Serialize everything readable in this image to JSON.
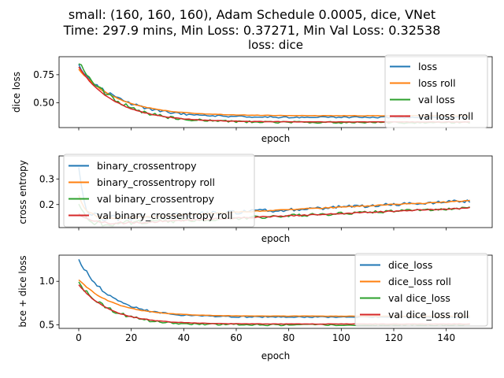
{
  "figure": {
    "title_line1": "small: (160, 160, 160), Adam Schedule 0.0005, dice, VNet",
    "title_line2": "Time: 297.9 mins, Min Loss: 0.37271, Min Val Loss: 0.32538"
  },
  "colors": {
    "c0": "#1f77b4",
    "c1": "#ff7f0e",
    "c2": "#2ca02c",
    "c3": "#d62728"
  },
  "chart_data": [
    {
      "type": "line",
      "title": "loss: dice",
      "xlabel": "epoch",
      "ylabel": "dice loss",
      "xlim": [
        -7.5,
        157.5
      ],
      "ylim": [
        0.28,
        0.91
      ],
      "xticks": [],
      "yticks": [
        {
          "value": 0.5,
          "label": "0.50"
        },
        {
          "value": 0.75,
          "label": "0.75"
        }
      ],
      "legend": "top-right",
      "n_epochs": 150,
      "series": [
        {
          "name": "loss",
          "color": "#1f77b4",
          "start": 0.83,
          "end": 0.37,
          "tau": 15,
          "noise": 0.006,
          "end_slope": 0.0
        },
        {
          "name": "loss roll",
          "color": "#ff7f0e",
          "start": 0.8,
          "end": 0.385,
          "tau": 15,
          "noise": 0.0015,
          "end_slope": 0.0
        },
        {
          "name": "val loss",
          "color": "#2ca02c",
          "start": 0.87,
          "end": 0.325,
          "tau": 14,
          "noise": 0.008,
          "end_slope": 0.0
        },
        {
          "name": "val loss roll",
          "color": "#d62728",
          "start": 0.82,
          "end": 0.33,
          "tau": 14,
          "noise": 0.0015,
          "end_slope": 0.0
        }
      ]
    },
    {
      "type": "line",
      "title": "",
      "xlabel": "epoch",
      "ylabel": "cross entropy",
      "xlim": [
        -7.5,
        157.5
      ],
      "ylim": [
        0.11,
        0.39
      ],
      "xticks": [],
      "yticks": [
        {
          "value": 0.2,
          "label": "0.2"
        },
        {
          "value": 0.3,
          "label": "0.3"
        }
      ],
      "legend": "top-left",
      "n_epochs": 150,
      "series": [
        {
          "name": "binary_crossentropy",
          "color": "#1f77b4",
          "start": 0.36,
          "end": 0.14,
          "tau": 2,
          "noise": 0.006,
          "end_slope": 0.0005
        },
        {
          "name": "binary_crossentropy roll",
          "color": "#ff7f0e",
          "start": 0.24,
          "end": 0.14,
          "tau": 3,
          "noise": 0.002,
          "end_slope": 0.0005
        },
        {
          "name": "val binary_crossentropy",
          "color": "#2ca02c",
          "start": 0.2,
          "end": 0.12,
          "tau": 3,
          "noise": 0.005,
          "end_slope": 0.00045
        },
        {
          "name": "val binary_crossentropy roll",
          "color": "#d62728",
          "start": 0.17,
          "end": 0.12,
          "tau": 4,
          "noise": 0.002,
          "end_slope": 0.00045
        }
      ]
    },
    {
      "type": "line",
      "title": "",
      "xlabel": "epoch",
      "ylabel": "bce + dice loss",
      "xlim": [
        -7.5,
        157.5
      ],
      "ylim": [
        0.46,
        1.3
      ],
      "xticks": [
        {
          "value": 0,
          "label": "0"
        },
        {
          "value": 20,
          "label": "20"
        },
        {
          "value": 40,
          "label": "40"
        },
        {
          "value": 60,
          "label": "60"
        },
        {
          "value": 80,
          "label": "80"
        },
        {
          "value": 100,
          "label": "100"
        },
        {
          "value": 120,
          "label": "120"
        },
        {
          "value": 140,
          "label": "140"
        }
      ],
      "yticks": [
        {
          "value": 0.5,
          "label": "0.5"
        },
        {
          "value": 1.0,
          "label": "1.0"
        }
      ],
      "legend": "top-right",
      "n_epochs": 150,
      "series": [
        {
          "name": "dice_loss",
          "color": "#1f77b4",
          "start": 1.25,
          "end": 0.59,
          "tau": 12,
          "noise": 0.006,
          "end_slope": 0.0
        },
        {
          "name": "dice_loss roll",
          "color": "#ff7f0e",
          "start": 1.02,
          "end": 0.6,
          "tau": 13,
          "noise": 0.0015,
          "end_slope": 0.0
        },
        {
          "name": "val dice_loss",
          "color": "#2ca02c",
          "start": 0.98,
          "end": 0.5,
          "tau": 12,
          "noise": 0.008,
          "end_slope": 0.0
        },
        {
          "name": "val dice_loss roll",
          "color": "#d62728",
          "start": 0.96,
          "end": 0.51,
          "tau": 12,
          "noise": 0.0015,
          "end_slope": 0.0
        }
      ]
    }
  ]
}
